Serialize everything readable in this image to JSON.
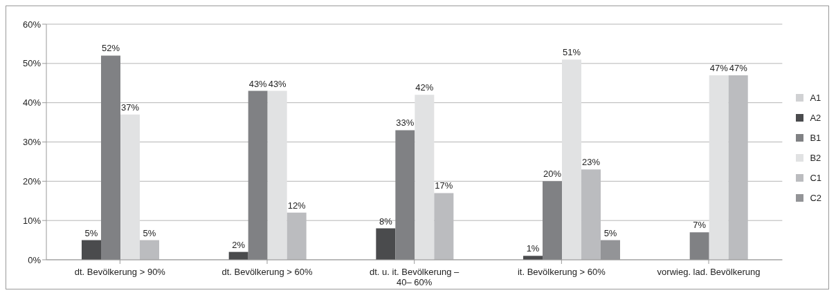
{
  "chart_data": {
    "type": "bar",
    "categories": [
      "dt. Bevölkerung > 90%",
      "dt. Bevölkerung > 60%",
      "dt. u. it. Bevölkerung – 40– 60%",
      "it. Bevölkerung > 60%",
      "vorwieg. lad. Bevölkerung"
    ],
    "series": [
      {
        "name": "A1",
        "color": "#d0d1d3",
        "values": [
          null,
          null,
          null,
          null,
          null
        ]
      },
      {
        "name": "A2",
        "color": "#4a4b4d",
        "values": [
          5,
          2,
          8,
          1,
          null
        ],
        "value_labels": [
          "5%",
          "2%",
          "8%",
          "1%",
          null
        ]
      },
      {
        "name": "B1",
        "color": "#808184",
        "values": [
          52,
          43,
          33,
          20,
          7
        ],
        "value_labels": [
          "52%",
          "43%",
          "33%",
          "20%",
          "7%"
        ]
      },
      {
        "name": "B2",
        "color": "#e1e2e3",
        "values": [
          37,
          43,
          42,
          51,
          47
        ],
        "value_labels": [
          "37%",
          "43%",
          "42%",
          "51%",
          "47%"
        ]
      },
      {
        "name": "C1",
        "color": "#bbbcbf",
        "values": [
          5,
          12,
          17,
          23,
          47
        ],
        "value_labels": [
          "5%",
          "12%",
          "17%",
          "23%",
          "47%"
        ]
      },
      {
        "name": "C2",
        "color": "#939497",
        "values": [
          null,
          null,
          null,
          5,
          null
        ],
        "value_labels": [
          null,
          null,
          null,
          "5%",
          null
        ]
      }
    ],
    "ylim": [
      0,
      60
    ],
    "yticks": [
      {
        "value": 0,
        "label": "0%"
      },
      {
        "value": 10,
        "label": "10%"
      },
      {
        "value": 20,
        "label": "20%"
      },
      {
        "value": 30,
        "label": "30%"
      },
      {
        "value": 40,
        "label": "40%"
      },
      {
        "value": 50,
        "label": "50%"
      },
      {
        "value": 60,
        "label": "60%"
      }
    ],
    "grid": "y",
    "legend": "right"
  }
}
